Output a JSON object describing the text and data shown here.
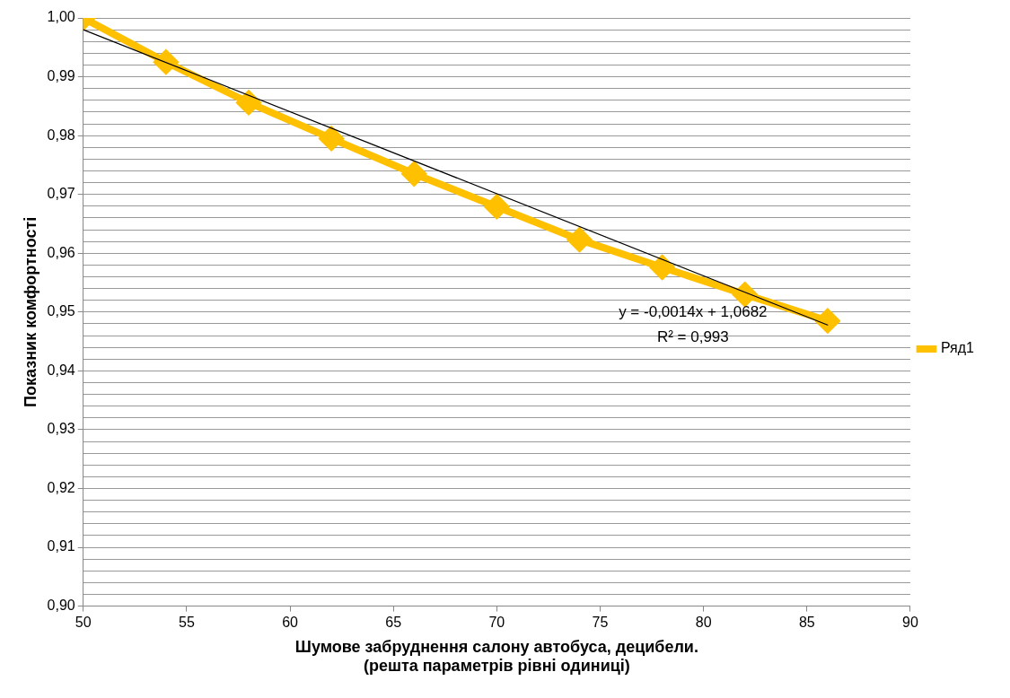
{
  "chart_data": {
    "type": "line",
    "xlabel": "Шумове забруднення салону автобуса, децибели.\n(решта параметрів рівні одиниці)",
    "ylabel": "Показник комфортності",
    "x": [
      50,
      54,
      58,
      62,
      66,
      70,
      74,
      78,
      82,
      86
    ],
    "series": [
      {
        "name": "Ряд1",
        "color": "#ffc000",
        "values": [
          1.0,
          0.9925,
          0.9856,
          0.9795,
          0.9735,
          0.9679,
          0.9623,
          0.9576,
          0.953,
          0.9485
        ],
        "marker": "diamond"
      },
      {
        "type": "line",
        "color": "#000000",
        "x": [
          50,
          86
        ],
        "values": [
          0.998,
          0.9478
        ],
        "marker": "none"
      }
    ],
    "xlim": [
      50,
      90
    ],
    "xticks": [
      50,
      55,
      60,
      65,
      70,
      75,
      80,
      85,
      90
    ],
    "ylim": [
      0.9,
      1.0
    ],
    "yticks": [
      {
        "value": 0.9,
        "label": "0,90"
      },
      {
        "value": 0.902,
        "label": null
      },
      {
        "value": 0.904,
        "label": null
      },
      {
        "value": 0.906,
        "label": null
      },
      {
        "value": 0.908,
        "label": null
      },
      {
        "value": 0.91,
        "label": "0,91"
      },
      {
        "value": 0.912,
        "label": null
      },
      {
        "value": 0.914,
        "label": null
      },
      {
        "value": 0.916,
        "label": null
      },
      {
        "value": 0.918,
        "label": null
      },
      {
        "value": 0.92,
        "label": "0,92"
      },
      {
        "value": 0.922,
        "label": null
      },
      {
        "value": 0.924,
        "label": null
      },
      {
        "value": 0.926,
        "label": null
      },
      {
        "value": 0.928,
        "label": null
      },
      {
        "value": 0.93,
        "label": "0,93"
      },
      {
        "value": 0.932,
        "label": null
      },
      {
        "value": 0.934,
        "label": null
      },
      {
        "value": 0.936,
        "label": null
      },
      {
        "value": 0.938,
        "label": null
      },
      {
        "value": 0.94,
        "label": "0,94"
      },
      {
        "value": 0.942,
        "label": null
      },
      {
        "value": 0.944,
        "label": null
      },
      {
        "value": 0.946,
        "label": null
      },
      {
        "value": 0.948,
        "label": null
      },
      {
        "value": 0.95,
        "label": "0,95"
      },
      {
        "value": 0.952,
        "label": null
      },
      {
        "value": 0.954,
        "label": null
      },
      {
        "value": 0.956,
        "label": null
      },
      {
        "value": 0.958,
        "label": null
      },
      {
        "value": 0.96,
        "label": "0,96"
      },
      {
        "value": 0.962,
        "label": null
      },
      {
        "value": 0.964,
        "label": null
      },
      {
        "value": 0.966,
        "label": null
      },
      {
        "value": 0.968,
        "label": null
      },
      {
        "value": 0.97,
        "label": "0,97"
      },
      {
        "value": 0.972,
        "label": null
      },
      {
        "value": 0.974,
        "label": null
      },
      {
        "value": 0.976,
        "label": null
      },
      {
        "value": 0.978,
        "label": null
      },
      {
        "value": 0.98,
        "label": "0,98"
      },
      {
        "value": 0.982,
        "label": null
      },
      {
        "value": 0.984,
        "label": null
      },
      {
        "value": 0.986,
        "label": null
      },
      {
        "value": 0.988,
        "label": null
      },
      {
        "value": 0.99,
        "label": "0,99"
      },
      {
        "value": 0.992,
        "label": null
      },
      {
        "value": 0.994,
        "label": null
      },
      {
        "value": 0.996,
        "label": null
      },
      {
        "value": 0.998,
        "label": null
      },
      {
        "value": 1.0,
        "label": "1,00"
      }
    ],
    "grid": "y",
    "legend": "right",
    "annotations": [
      "y = -0,0014x + 1,0682",
      "R² = 0,993"
    ]
  }
}
